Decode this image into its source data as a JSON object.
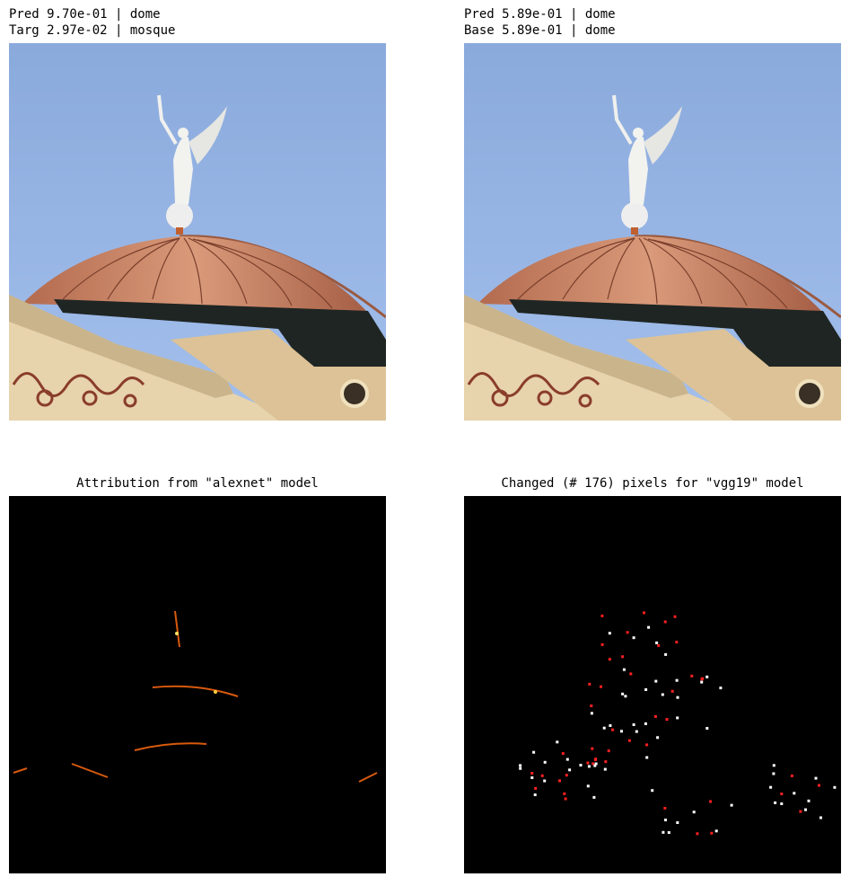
{
  "panels": [
    {
      "title_lines": [
        "Pred 9.70e-01 | dome",
        "Targ 2.97e-02 | mosque"
      ]
    },
    {
      "title_lines": [
        "Pred 5.89e-01 | dome",
        "Base 5.89e-01 | dome"
      ]
    },
    {
      "title": "Attribution from \"alexnet\" model"
    },
    {
      "title": "Changed (# 176) pixels for \"vgg19\" model"
    }
  ]
}
